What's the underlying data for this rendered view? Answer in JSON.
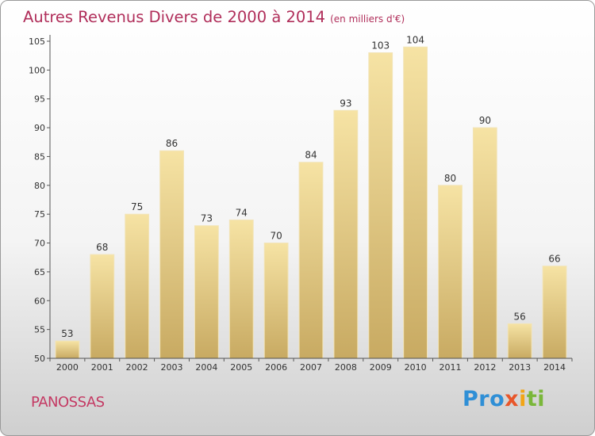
{
  "title": "Autres Revenus Divers de 2000 à 2014",
  "unit": "(en milliers d'€)",
  "place": "PANOSSAS",
  "logo": {
    "p1": "Pro",
    "p2": "x",
    "p3": "i",
    "p4": "ti"
  },
  "chart_data": {
    "type": "bar",
    "title": "Autres Revenus Divers de 2000 à 2014",
    "subtitle": "(en milliers d'€)",
    "categories": [
      "2000",
      "2001",
      "2002",
      "2003",
      "2004",
      "2005",
      "2006",
      "2007",
      "2008",
      "2009",
      "2010",
      "2011",
      "2012",
      "2013",
      "2014"
    ],
    "values": [
      53,
      68,
      75,
      86,
      73,
      74,
      70,
      84,
      93,
      103,
      104,
      80,
      90,
      56,
      66
    ],
    "ylim": [
      50,
      105
    ],
    "yticks": [
      50,
      55,
      60,
      65,
      70,
      75,
      80,
      85,
      90,
      95,
      100,
      105
    ],
    "grid": false,
    "colors": {
      "bar_top": "#f6e3a4",
      "bar_bottom": "#c8aa62",
      "axis": "#555555"
    }
  }
}
